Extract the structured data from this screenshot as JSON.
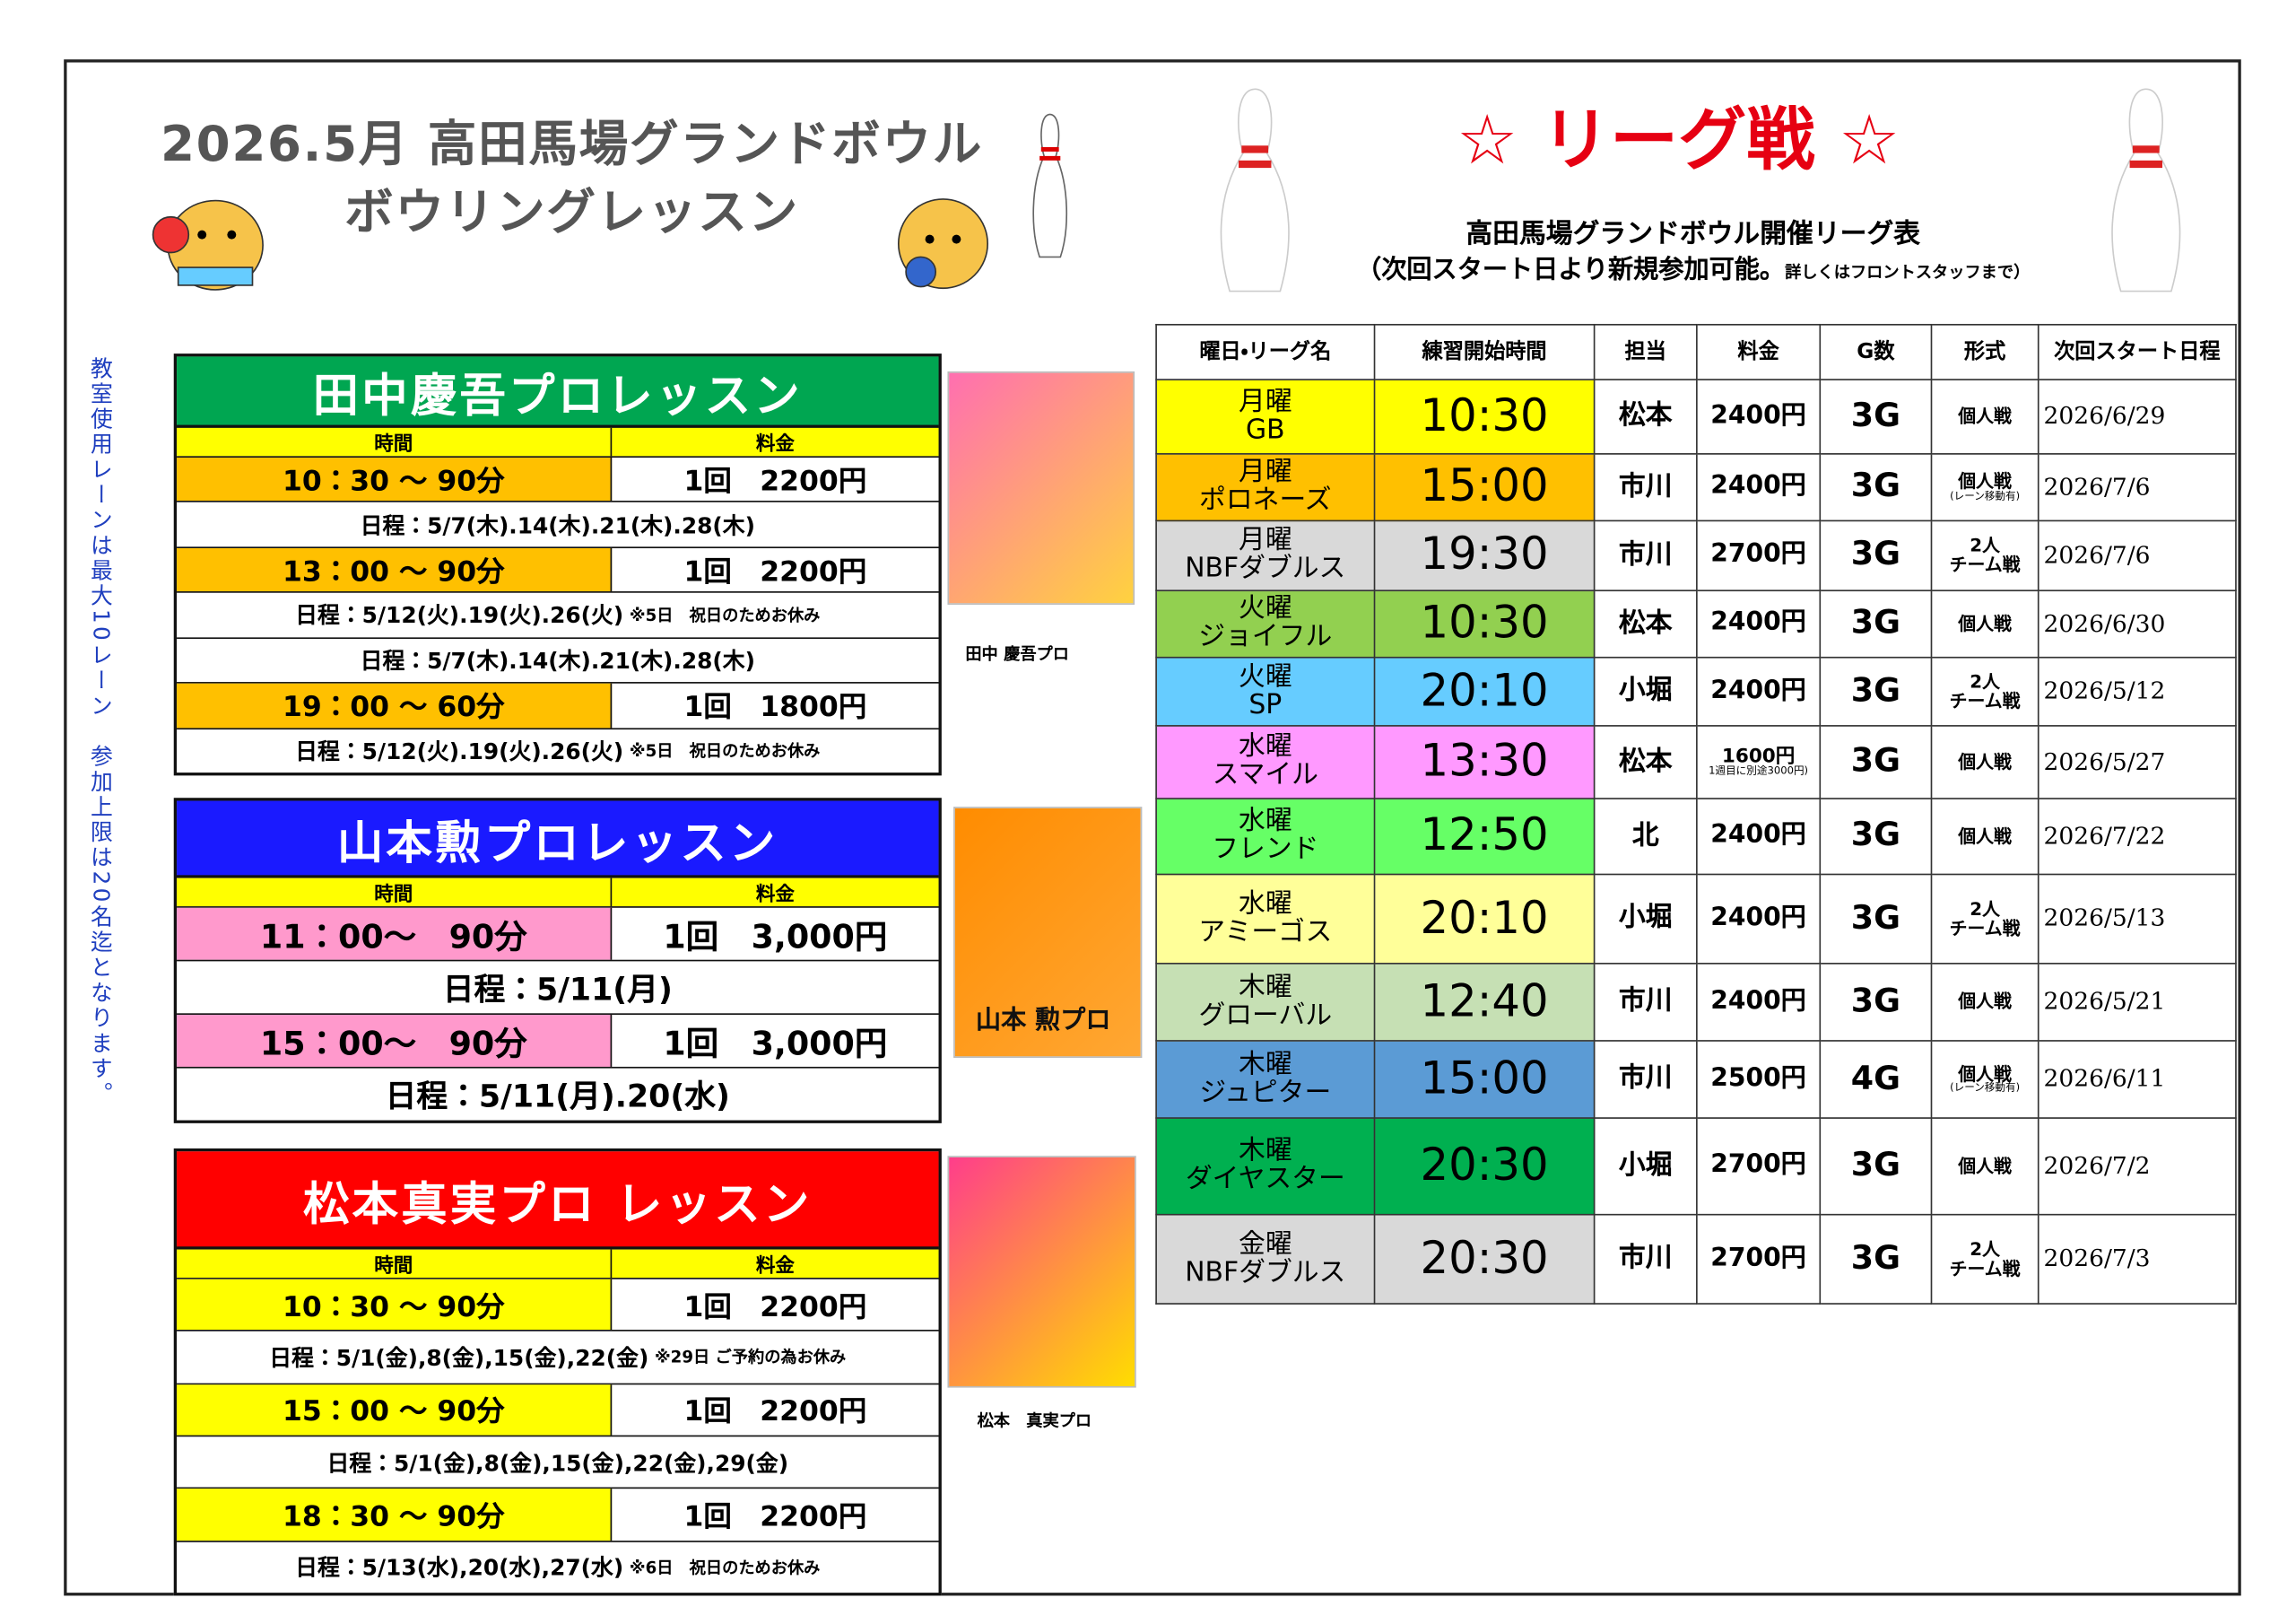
{
  "header": {
    "title_line1": "2026.5月 高田馬場グランドボウル",
    "title_line2": "ボウリングレッスン"
  },
  "side_note": "教室使用レーンは最大10レーン　参加上限は20名迄となります。",
  "league": {
    "title": "☆ リーグ戦 ☆",
    "subtitle": "高田馬場グランドボウル開催リーグ表",
    "note": "（次回スタート日より新規参加可能。",
    "small_note": "詳しくはフロントスタッフまで）",
    "columns": [
      "曜日・リーグ名",
      "練習開始時間",
      "担当",
      "料金",
      "G数",
      "形式",
      "次回スタート日程"
    ],
    "rows": [
      {
        "day": "月曜",
        "name": "GB",
        "time": "10:30",
        "staff": "松本",
        "fee": "2400円",
        "games": "3G",
        "format": "個人戦",
        "next": "2026/6/29",
        "color": "#ffff00"
      },
      {
        "day": "月曜",
        "name": "ポロネーズ",
        "time": "15:00",
        "staff": "市川",
        "fee": "2400円",
        "games": "3G",
        "format": "個人戦",
        "format_note": "(レーン移動有)",
        "next": "2026/7/6",
        "color": "#ffc000"
      },
      {
        "day": "月曜",
        "name": "NBFダブルス",
        "time": "19:30",
        "staff": "市川",
        "fee": "2700円",
        "games": "3G",
        "format": "2人\nチーム戦",
        "next": "2026/7/6",
        "color": "#d9d9d9"
      },
      {
        "day": "火曜",
        "name": "ジョイフル",
        "time": "10:30",
        "staff": "松本",
        "fee": "2400円",
        "games": "3G",
        "format": "個人戦",
        "next": "2026/6/30",
        "color": "#92d050"
      },
      {
        "day": "火曜",
        "name": "SP",
        "time": "20:10",
        "staff": "小堀",
        "fee": "2400円",
        "games": "3G",
        "format": "2人\nチーム戦",
        "next": "2026/5/12",
        "color": "#66ccff"
      },
      {
        "day": "水曜",
        "name": "スマイル",
        "time": "13:30",
        "staff": "松本",
        "fee": "1600円",
        "fee_note": "1週目に別途3000円)",
        "games": "3G",
        "format": "個人戦",
        "next": "2026/5/27",
        "color": "#ff99ff"
      },
      {
        "day": "水曜",
        "name": "フレンド",
        "time": "12:50",
        "staff": "北",
        "fee": "2400円",
        "games": "3G",
        "format": "個人戦",
        "next": "2026/7/22",
        "color": "#66ff66"
      },
      {
        "day": "水曜",
        "name": "アミーゴス",
        "time": "20:10",
        "staff": "小堀",
        "fee": "2400円",
        "games": "3G",
        "format": "2人\nチーム戦",
        "next": "2026/5/13",
        "color": "#ffff99"
      },
      {
        "day": "木曜",
        "name": "グローバル",
        "time": "12:40",
        "staff": "市川",
        "fee": "2400円",
        "games": "3G",
        "format": "個人戦",
        "next": "2026/5/21",
        "color": "#c6e0b4"
      },
      {
        "day": "木曜",
        "name": "ジュピター",
        "time": "15:00",
        "staff": "市川",
        "fee": "2500円",
        "games": "4G",
        "format": "個人戦",
        "format_note": "(レーン移動有)",
        "next": "2026/6/11",
        "color": "#5b9bd5"
      },
      {
        "day": "木曜",
        "name": "ダイヤスター",
        "time": "20:30",
        "staff": "小堀",
        "fee": "2700円",
        "games": "3G",
        "format": "個人戦",
        "next": "2026/7/2",
        "color": "#00b050"
      },
      {
        "day": "金曜",
        "name": "NBFダブルス",
        "time": "20:30",
        "staff": "市川",
        "fee": "2700円",
        "games": "3G",
        "format": "2人\nチーム戦",
        "next": "2026/7/3",
        "color": "#d9d9d9"
      }
    ]
  },
  "lessons": [
    {
      "title": "田中慶吾プロレッスン",
      "title_color": "#00a651",
      "time_color": "#ffc000",
      "columns": [
        "時間",
        "料金"
      ],
      "photo_caption": "田中 慶吾プロ",
      "rows": [
        {
          "time": "10：30 〜 90分",
          "price": "1回　2200円"
        },
        {
          "schedule": "日程：5/7(木).14(木).21(木).28(木)"
        },
        {
          "time": "13：00 〜 90分",
          "price": "1回　2200円"
        },
        {
          "schedule": "日程：5/12(火).19(火).26(火)",
          "note": "※5日　祝日のためお休み"
        },
        {
          "schedule": "日程：5/7(木).14(木).21(木).28(木)"
        },
        {
          "time": "19：00 〜 60分",
          "price": "1回　1800円"
        },
        {
          "schedule": "日程：5/12(火).19(火).26(火)",
          "note": "※5日　祝日のためお休み"
        }
      ]
    },
    {
      "title": "山本勲プロレッスン",
      "title_color": "#1a1aff",
      "time_color": "#ff99cc",
      "columns": [
        "時間",
        "料金"
      ],
      "photo_caption": "山本 勲プロ",
      "rows": [
        {
          "time": "11：00〜　90分",
          "price": "1回　3,000円"
        },
        {
          "schedule": "日程：5/11(月)"
        },
        {
          "time": "15：00〜　90分",
          "price": "1回　3,000円"
        },
        {
          "schedule": "日程：5/11(月).20(水)"
        }
      ]
    },
    {
      "title": "松本真実プロ レッスン",
      "title_color": "#ff0000",
      "time_color": "#ffff00",
      "columns": [
        "時間",
        "料金"
      ],
      "photo_caption": "松本　真実プロ",
      "rows": [
        {
          "time": "10：30 〜 90分",
          "price": "1回　2200円"
        },
        {
          "schedule": "日程：5/1(金),8(金),15(金),22(金)",
          "note": "※29日 ご予約の為お休み"
        },
        {
          "time": "15：00 〜 90分",
          "price": "1回　2200円"
        },
        {
          "schedule": "日程：5/1(金),8(金),15(金),22(金),29(金)"
        },
        {
          "time": "18：30 〜 90分",
          "price": "1回　2200円"
        },
        {
          "schedule": "日程：5/13(水),20(水),27(水)",
          "note": "※6日　祝日のためお休み"
        }
      ]
    }
  ]
}
